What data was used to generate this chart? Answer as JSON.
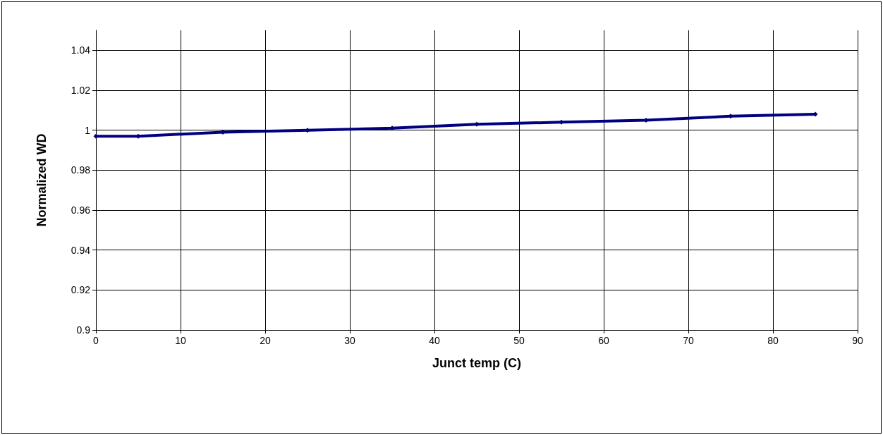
{
  "chart_data": {
    "type": "line",
    "xlabel": "Junct temp (C)",
    "ylabel": "Normalized WD",
    "x": [
      0,
      5,
      15,
      25,
      35,
      45,
      55,
      65,
      75,
      85
    ],
    "series": [
      {
        "color": "#000080",
        "values": [
          0.997,
          0.997,
          0.999,
          1.0,
          1.001,
          1.003,
          1.004,
          1.005,
          1.007,
          1.008
        ]
      }
    ],
    "xlim": [
      0,
      90
    ],
    "xticks": [
      0,
      10,
      20,
      30,
      40,
      50,
      60,
      70,
      80,
      90
    ],
    "ylim": [
      0.9,
      1.05
    ],
    "yticks": [
      0.9,
      0.92,
      0.94,
      0.96,
      0.98,
      1,
      1.02,
      1.04
    ],
    "grid": true,
    "marker": "diamond",
    "line_style": "solid"
  }
}
